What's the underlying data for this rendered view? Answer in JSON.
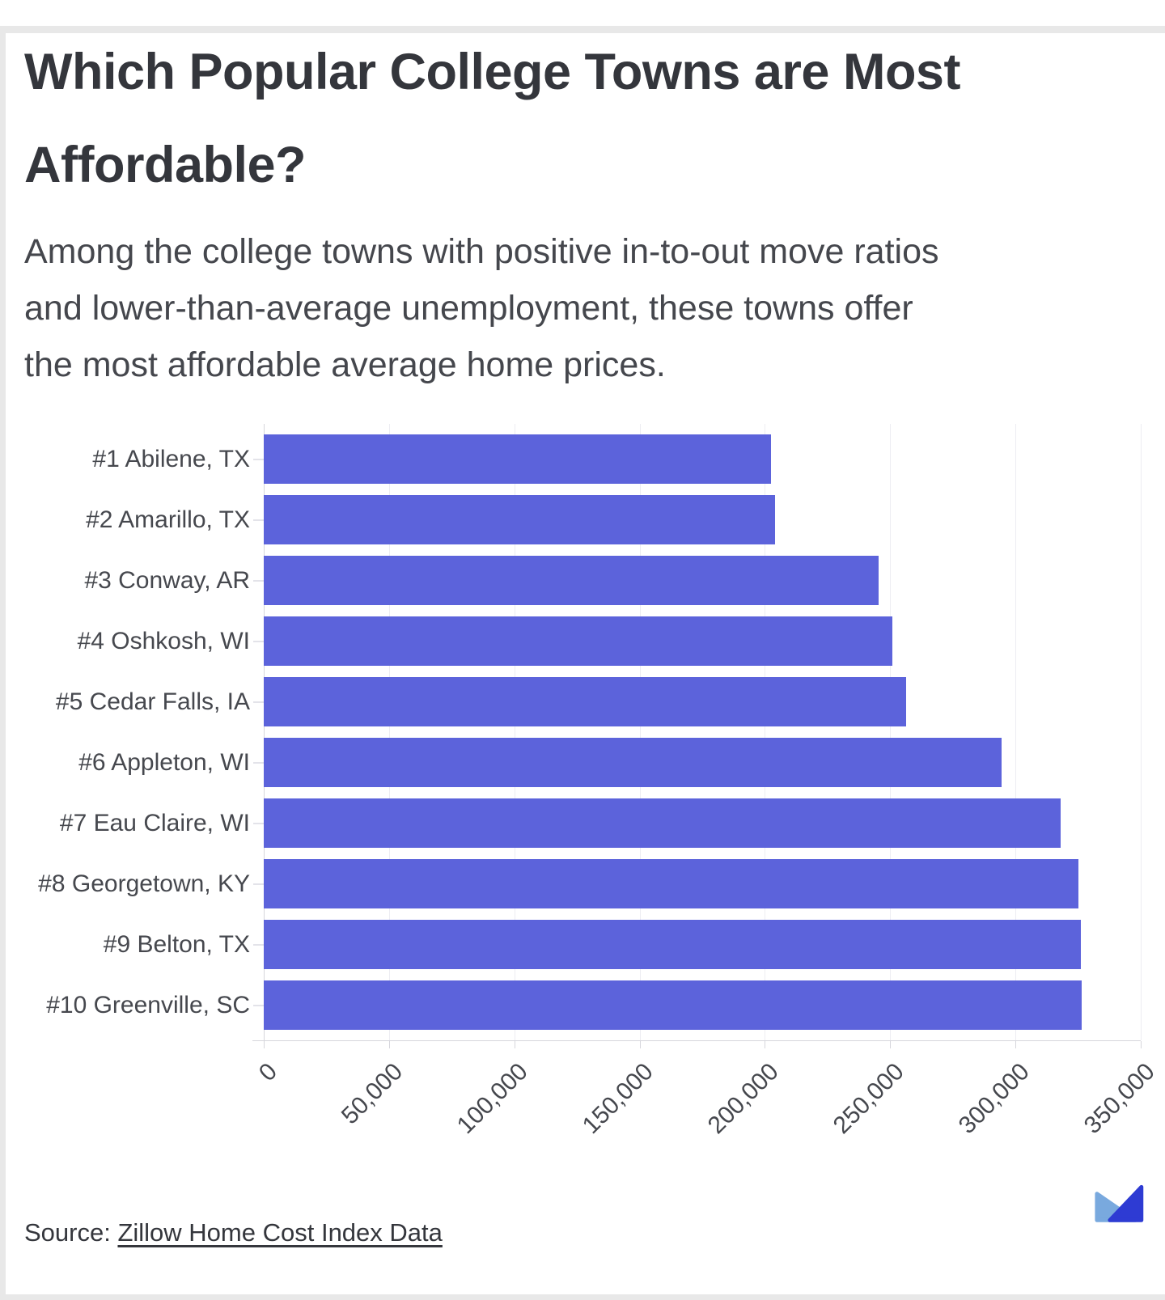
{
  "header": {
    "title": "Which Popular College Towns are Most Affordable?",
    "subtitle_lines": [
      "Among the college towns with positive in-to-out move ratios",
      "and lower-than-average unemployment, these towns offer",
      "the most affordable average home prices."
    ]
  },
  "chart_data": {
    "type": "bar",
    "orientation": "horizontal",
    "title": "Which Popular College Towns are Most Affordable?",
    "categories": [
      "#1 Abilene, TX",
      "#2 Amarillo, TX",
      "#3 Conway, AR",
      "#4 Oshkosh, WI",
      "#5 Cedar Falls, IA",
      "#6 Appleton, WI",
      "#7 Eau Claire, WI",
      "#8 Georgetown, KY",
      "#9 Belton, TX",
      "#10 Greenville, SC"
    ],
    "values": [
      202500,
      204000,
      245500,
      251000,
      256500,
      294500,
      318000,
      325000,
      326000,
      326500
    ],
    "xlabel": "",
    "ylabel": "",
    "xlim": [
      0,
      350000
    ],
    "x_ticks": [
      0,
      50000,
      100000,
      150000,
      200000,
      250000,
      300000,
      350000
    ],
    "x_tick_labels": [
      "0",
      "50,000",
      "100,000",
      "150,000",
      "200,000",
      "250,000",
      "300,000",
      "350,000"
    ],
    "grid": true,
    "legend": false,
    "bar_color": "#5c63db"
  },
  "footer": {
    "source_prefix": "Source: ",
    "source_link_label": "Zillow Home Cost Index Data",
    "logo_light": "#79a9de",
    "logo_dark": "#2e3bd3"
  }
}
